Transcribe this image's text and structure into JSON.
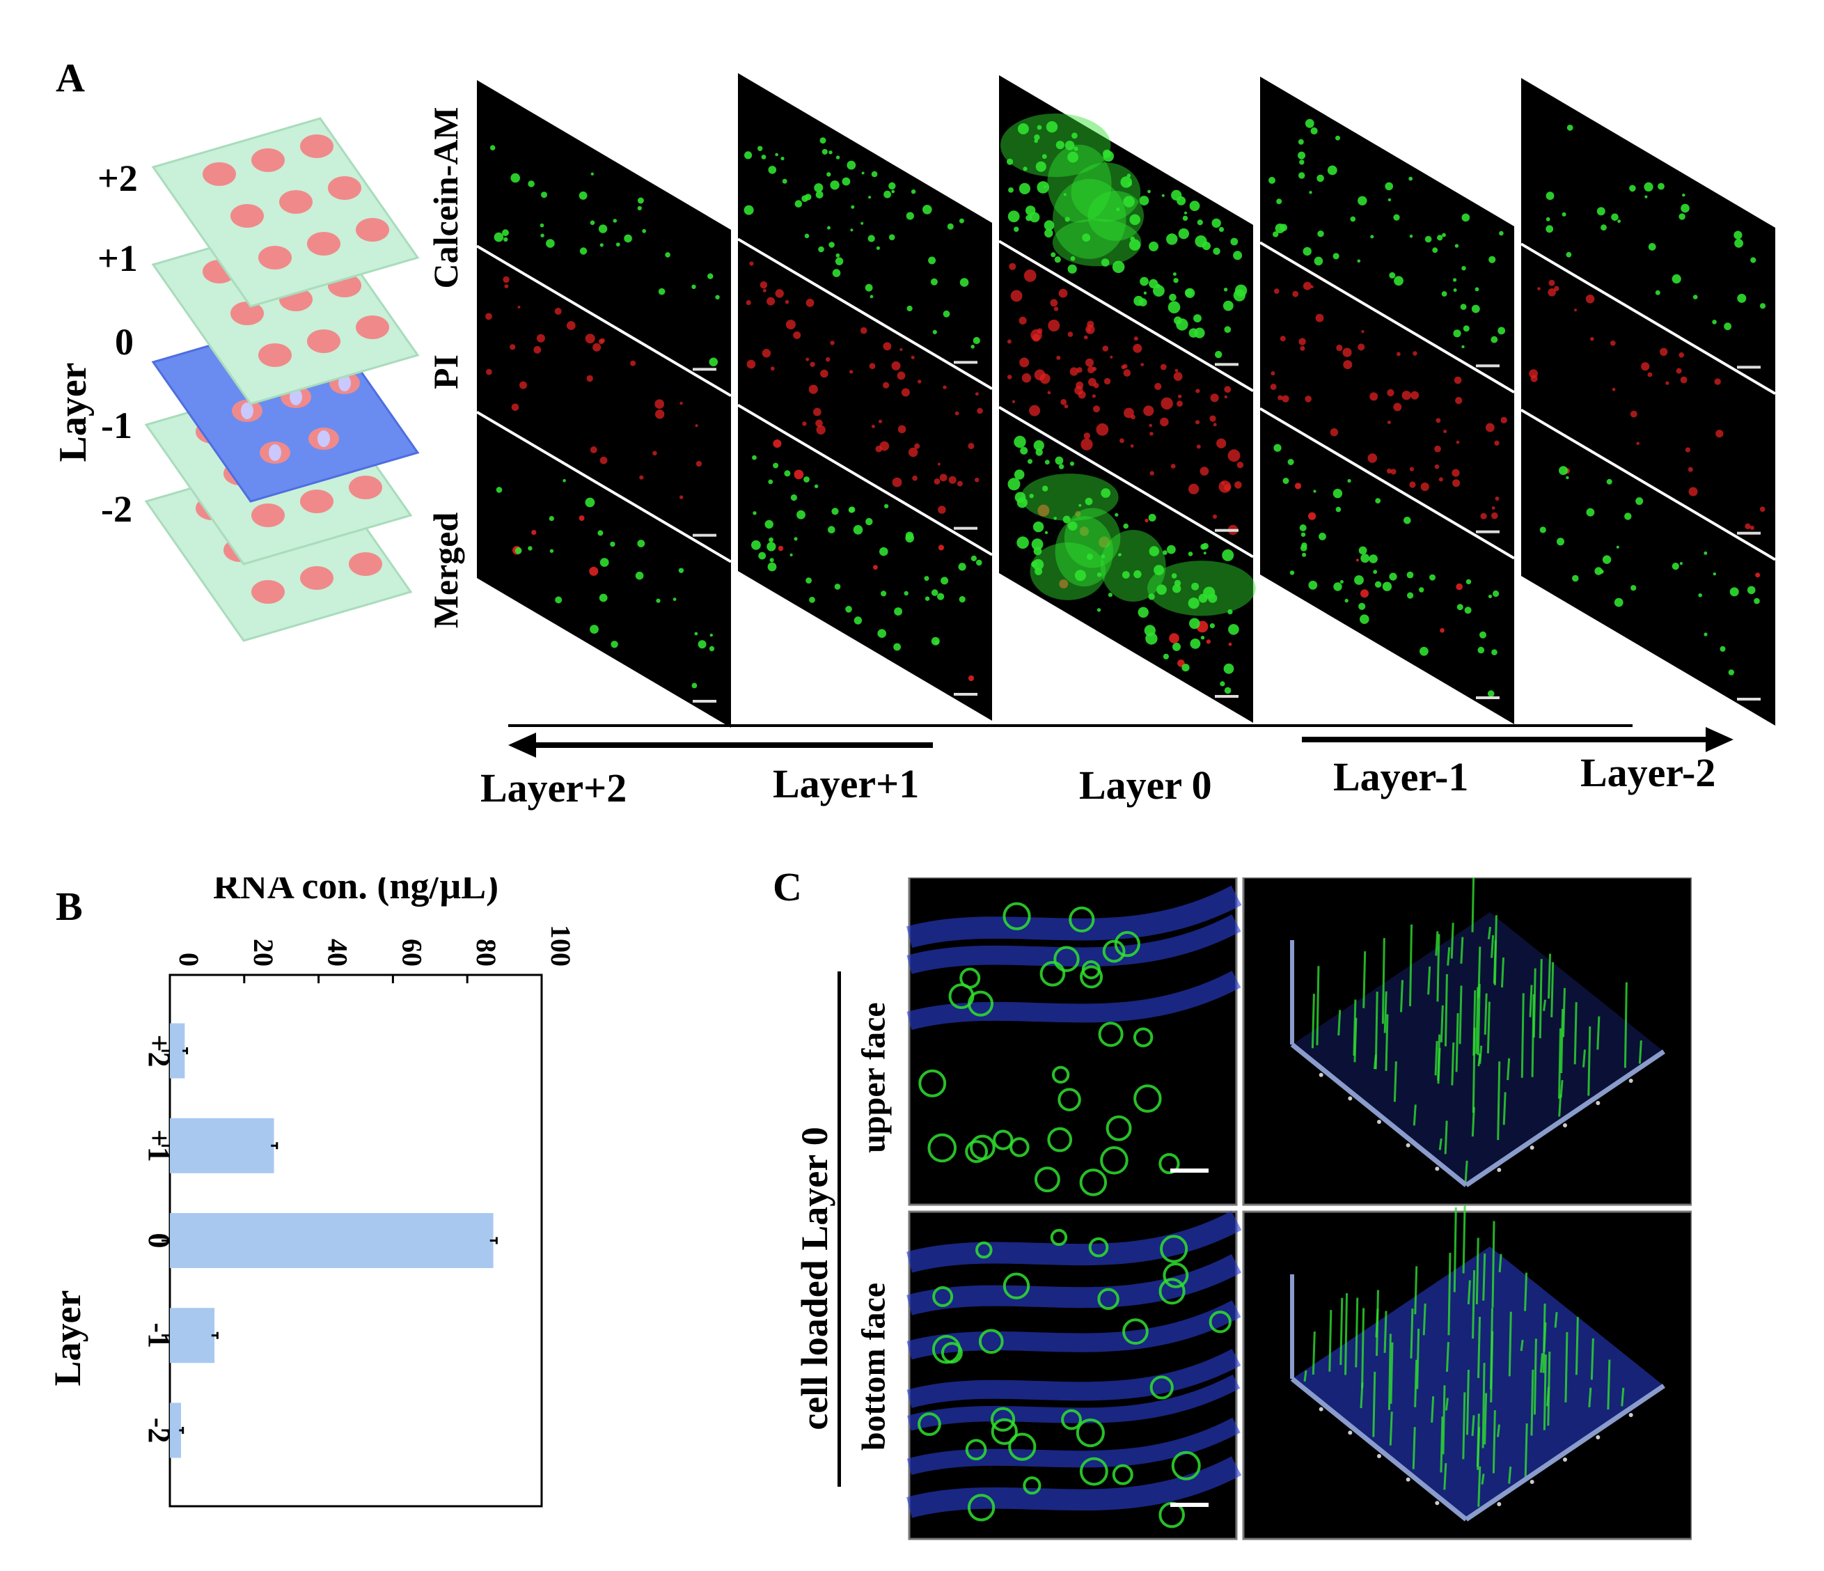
{
  "panels": {
    "a": "A",
    "b": "B",
    "c": "C"
  },
  "panelA": {
    "layer_axis": "Layer",
    "layer_numbers": [
      "+2",
      "+1",
      "0",
      "-1",
      "-2"
    ],
    "row_labels": [
      "Calcein-AM",
      "PI",
      "Merged"
    ],
    "bottom_labels": [
      "Layer+2",
      "Layer+1",
      "Layer 0",
      "Layer-1",
      "Layer-2"
    ]
  },
  "panelC": {
    "main_label": "cell loaded Layer 0",
    "row_labels": [
      "upper face",
      "bottom face"
    ]
  },
  "chart_data": {
    "type": "bar",
    "orientation": "horizontal",
    "categories": [
      "+2",
      "+1",
      "0",
      "-1",
      "-2"
    ],
    "values": [
      4,
      28,
      87,
      12,
      3
    ],
    "errors": [
      0.6,
      0.8,
      0.9,
      0.8,
      0.5
    ],
    "xlabel": "RNA con. (ng/μL)",
    "ylabel": "Layer",
    "xlim": [
      0,
      100
    ],
    "xticks": [
      0,
      20,
      40,
      60,
      80,
      100
    ],
    "bar_color": "#a8c8f0"
  },
  "colors": {
    "sheet": "#c9f0d8",
    "sheet_active": "#6a8cf0",
    "dot": "#f08a8a",
    "green_signal": "#2fe02f",
    "red_signal": "#e02020",
    "blue_signal": "#2a3fd8",
    "axis_3d": "#8a9ccc"
  }
}
